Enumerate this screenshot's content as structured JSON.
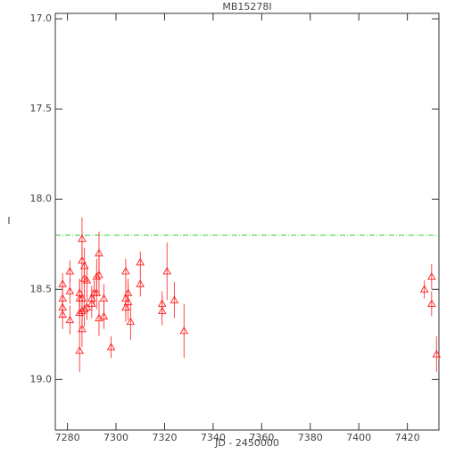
{
  "chart_data": {
    "type": "scatter",
    "title": "MB15278I",
    "x_label": "JD - 2450000",
    "y_label": "I",
    "xlim": [
      7275,
      7433
    ],
    "ylim": [
      16.97,
      19.28
    ],
    "y_inverted": true,
    "xticks": [
      7280,
      7300,
      7320,
      7340,
      7360,
      7380,
      7400,
      7420
    ],
    "yticks": [
      {
        "value": 17,
        "label": "17.0"
      },
      {
        "value": 17.5,
        "label": "17.5"
      },
      {
        "value": 18,
        "label": "18.0"
      },
      {
        "value": 18.5,
        "label": "18.5"
      },
      {
        "value": 19,
        "label": "19.0"
      }
    ],
    "reference_line": {
      "value": 18.2,
      "color": "#33cc33"
    },
    "series": [
      {
        "color": "#ff2020",
        "x": [
          7278,
          7278,
          7278,
          7278,
          7281,
          7281,
          7281,
          7285,
          7285,
          7285,
          7285,
          7286,
          7286,
          7286,
          7286,
          7286,
          7287,
          7287,
          7287,
          7288,
          7288,
          7290,
          7290,
          7291,
          7292,
          7292,
          7293,
          7293,
          7293,
          7295,
          7295,
          7298,
          7304,
          7304,
          7304,
          7305,
          7305,
          7306,
          7310,
          7310,
          7319,
          7319,
          7321,
          7324,
          7328,
          7427,
          7430,
          7430,
          7432
        ],
        "values": [
          18.47,
          18.55,
          18.6,
          18.64,
          18.4,
          18.51,
          18.67,
          18.52,
          18.55,
          18.63,
          18.84,
          18.22,
          18.34,
          18.62,
          18.72,
          18.55,
          18.37,
          18.44,
          18.61,
          18.45,
          18.6,
          18.55,
          18.58,
          18.52,
          18.43,
          18.52,
          18.3,
          18.42,
          18.66,
          18.55,
          18.65,
          18.82,
          18.4,
          18.6,
          18.55,
          18.52,
          18.57,
          18.68,
          18.35,
          18.47,
          18.58,
          18.62,
          18.4,
          18.56,
          18.73,
          18.5,
          18.43,
          18.58,
          18.86
        ],
        "errors": [
          0.06,
          0.07,
          0.06,
          0.08,
          0.06,
          0.07,
          0.08,
          0.08,
          0.1,
          0.09,
          0.12,
          0.12,
          0.1,
          0.09,
          0.1,
          0.12,
          0.1,
          0.08,
          0.1,
          0.08,
          0.07,
          0.07,
          0.08,
          0.07,
          0.1,
          0.09,
          0.12,
          0.1,
          0.1,
          0.08,
          0.07,
          0.06,
          0.07,
          0.08,
          0.1,
          0.08,
          0.1,
          0.1,
          0.06,
          0.07,
          0.07,
          0.08,
          0.16,
          0.1,
          0.15,
          0.05,
          0.07,
          0.07,
          0.1
        ]
      }
    ]
  }
}
